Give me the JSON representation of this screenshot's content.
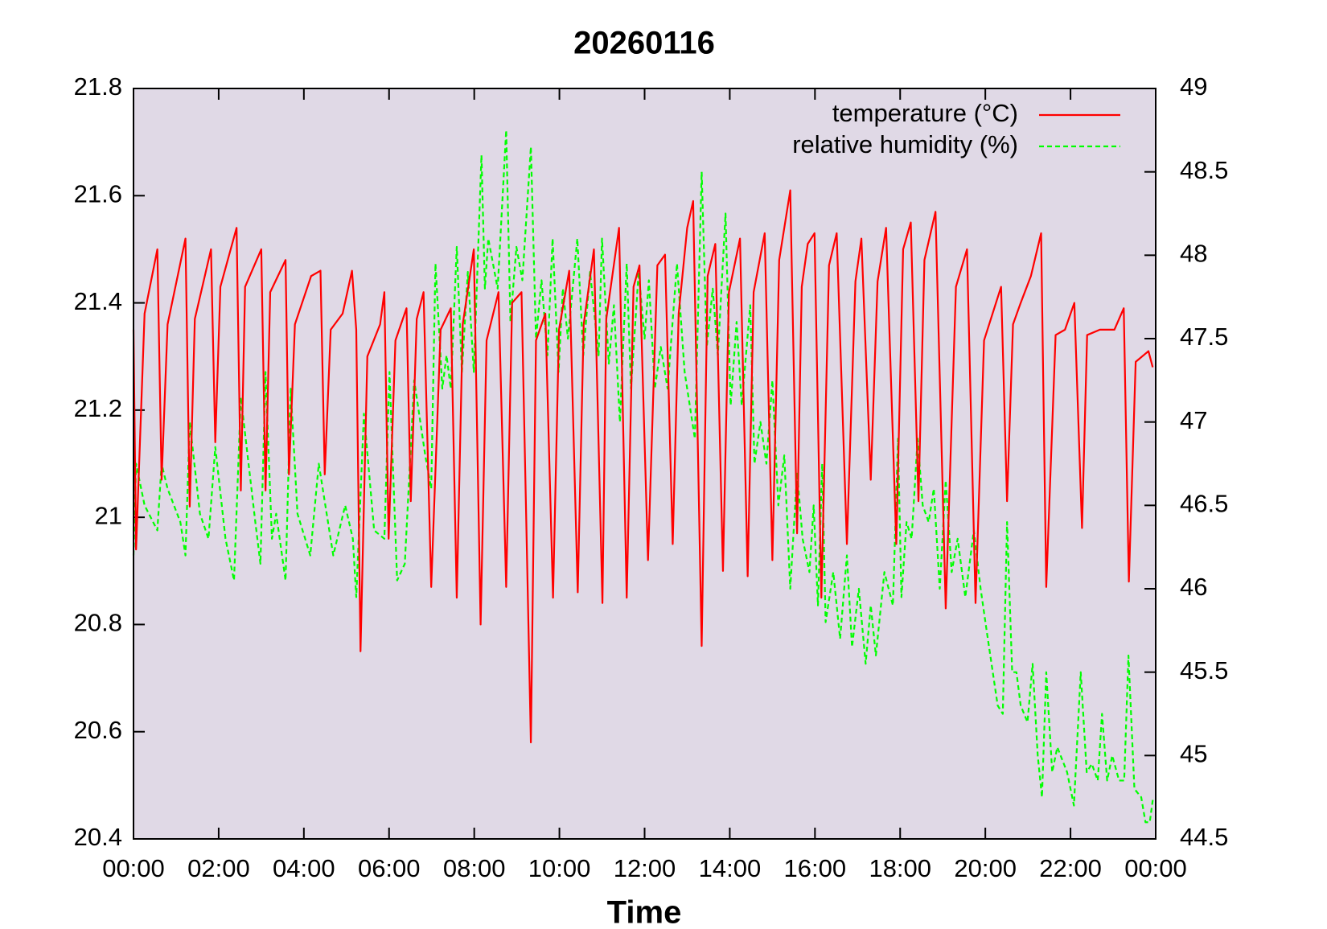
{
  "chart_data": {
    "type": "line",
    "title": "20260116",
    "x_label": "Time",
    "xlim": [
      0,
      24
    ],
    "xticks": [
      {
        "value": 0,
        "label": "00:00"
      },
      {
        "value": 2,
        "label": "02:00"
      },
      {
        "value": 4,
        "label": "04:00"
      },
      {
        "value": 6,
        "label": "06:00"
      },
      {
        "value": 8,
        "label": "08:00"
      },
      {
        "value": 10,
        "label": "10:00"
      },
      {
        "value": 12,
        "label": "12:00"
      },
      {
        "value": 14,
        "label": "14:00"
      },
      {
        "value": 16,
        "label": "16:00"
      },
      {
        "value": 18,
        "label": "18:00"
      },
      {
        "value": 20,
        "label": "20:00"
      },
      {
        "value": 22,
        "label": "22:00"
      },
      {
        "value": 24,
        "label": "00:00"
      }
    ],
    "ylim": [
      20.4,
      21.8
    ],
    "yticks": [
      20.4,
      20.6,
      20.8,
      21,
      21.2,
      21.4,
      21.6,
      21.8
    ],
    "y2lim": [
      44.5,
      49
    ],
    "y2ticks": [
      44.5,
      45,
      45.5,
      46,
      46.5,
      47,
      47.5,
      48,
      48.5,
      49
    ],
    "legend": "top-right",
    "background": "#e0d9e6",
    "series": [
      {
        "name": "temperature (°C)",
        "color": "#ff0000",
        "dashed": false,
        "axis": "y",
        "x": [
          0,
          0.06,
          0.26,
          0.56,
          0.66,
          0.8,
          1.22,
          1.32,
          1.44,
          1.82,
          1.92,
          2.04,
          2.42,
          2.52,
          2.62,
          3.0,
          3.1,
          3.21,
          3.57,
          3.65,
          3.79,
          4.17,
          4.39,
          4.49,
          4.63,
          4.91,
          5.13,
          5.23,
          5.33,
          5.49,
          5.79,
          5.89,
          5.99,
          6.15,
          6.41,
          6.51,
          6.65,
          6.81,
          6.99,
          7.21,
          7.45,
          7.59,
          7.73,
          7.99,
          8.15,
          8.29,
          8.57,
          8.75,
          8.89,
          9.11,
          9.33,
          9.45,
          9.67,
          9.85,
          9.99,
          10.23,
          10.43,
          10.57,
          10.81,
          11.01,
          11.1,
          11.4,
          11.58,
          11.74,
          11.88,
          12.08,
          12.3,
          12.48,
          12.66,
          12.8,
          13.0,
          13.14,
          13.34,
          13.48,
          13.66,
          13.84,
          13.98,
          14.24,
          14.42,
          14.56,
          14.82,
          15.0,
          15.16,
          15.42,
          15.58,
          15.69,
          15.83,
          15.99,
          16.15,
          16.33,
          16.51,
          16.75,
          16.95,
          17.09,
          17.31,
          17.47,
          17.67,
          17.91,
          18.07,
          18.25,
          18.43,
          18.57,
          18.83,
          19.07,
          19.31,
          19.57,
          19.77,
          19.97,
          20.37,
          20.51,
          20.65,
          20.83,
          21.07,
          21.31,
          21.43,
          21.65,
          21.87,
          22.09,
          22.27,
          22.39,
          22.69,
          23.03,
          23.25,
          23.37,
          23.53,
          23.83,
          23.93
        ],
        "values": [
          21.35,
          20.94,
          21.38,
          21.5,
          21.07,
          21.36,
          21.52,
          21.02,
          21.37,
          21.5,
          21.14,
          21.43,
          21.54,
          21.05,
          21.43,
          21.5,
          21.05,
          21.42,
          21.48,
          21.08,
          21.36,
          21.45,
          21.46,
          21.08,
          21.35,
          21.38,
          21.46,
          21.35,
          20.75,
          21.3,
          21.36,
          21.42,
          20.96,
          21.33,
          21.39,
          21.03,
          21.37,
          21.42,
          20.87,
          21.35,
          21.39,
          20.85,
          21.36,
          21.5,
          20.8,
          21.33,
          21.42,
          20.87,
          21.4,
          21.42,
          20.58,
          21.33,
          21.38,
          20.85,
          21.35,
          21.46,
          20.86,
          21.36,
          21.5,
          20.84,
          21.37,
          21.54,
          20.85,
          21.43,
          21.47,
          20.92,
          21.47,
          21.49,
          20.95,
          21.38,
          21.54,
          21.59,
          20.76,
          21.45,
          21.51,
          20.9,
          21.42,
          21.52,
          20.89,
          21.42,
          21.53,
          20.92,
          21.48,
          21.61,
          20.97,
          21.43,
          21.51,
          21.53,
          20.85,
          21.47,
          21.53,
          20.95,
          21.44,
          21.52,
          21.07,
          21.44,
          21.54,
          20.95,
          21.5,
          21.55,
          21.03,
          21.48,
          21.57,
          20.83,
          21.43,
          21.5,
          20.84,
          21.33,
          21.43,
          21.03,
          21.36,
          21.4,
          21.45,
          21.53,
          20.87,
          21.34,
          21.35,
          21.4,
          20.98,
          21.34,
          21.35,
          21.35,
          21.39,
          20.88,
          21.29,
          21.31,
          21.28
        ]
      },
      {
        "name": "relative humidity (%)",
        "color": "#00ff00",
        "dashed": true,
        "axis": "y2",
        "x": [
          0,
          0.06,
          0.26,
          0.56,
          0.66,
          0.8,
          1.1,
          1.22,
          1.32,
          1.56,
          1.76,
          1.92,
          2.16,
          2.36,
          2.52,
          2.86,
          2.98,
          3.1,
          3.25,
          3.35,
          3.57,
          3.69,
          3.85,
          4.15,
          4.35,
          4.69,
          4.97,
          5.15,
          5.23,
          5.41,
          5.65,
          5.89,
          6.01,
          6.19,
          6.37,
          6.59,
          6.85,
          6.99,
          7.09,
          7.25,
          7.35,
          7.45,
          7.59,
          7.71,
          7.85,
          7.99,
          8.17,
          8.25,
          8.33,
          8.55,
          8.75,
          8.85,
          8.99,
          9.13,
          9.33,
          9.45,
          9.58,
          9.72,
          9.84,
          9.98,
          10.08,
          10.2,
          10.42,
          10.56,
          10.72,
          10.92,
          11.0,
          11.16,
          11.28,
          11.42,
          11.58,
          11.68,
          11.86,
          12.0,
          12.1,
          12.24,
          12.38,
          12.54,
          12.76,
          12.94,
          13.18,
          13.34,
          13.46,
          13.6,
          13.72,
          13.9,
          14.02,
          14.16,
          14.28,
          14.48,
          14.58,
          14.72,
          14.86,
          15.0,
          15.14,
          15.28,
          15.42,
          15.58,
          15.71,
          15.87,
          15.97,
          16.07,
          16.17,
          16.25,
          16.43,
          16.59,
          16.75,
          16.87,
          17.03,
          17.19,
          17.31,
          17.43,
          17.63,
          17.83,
          17.95,
          18.03,
          18.15,
          18.27,
          18.41,
          18.53,
          18.67,
          18.79,
          18.93,
          19.07,
          19.21,
          19.35,
          19.53,
          19.73,
          19.89,
          20.03,
          20.29,
          20.41,
          20.51,
          20.63,
          20.73,
          20.83,
          20.99,
          21.11,
          21.23,
          21.33,
          21.43,
          21.57,
          21.69,
          21.92,
          22.08,
          22.24,
          22.38,
          22.5,
          22.64,
          22.74,
          22.86,
          22.98,
          23.14,
          23.26,
          23.36,
          23.5,
          23.66,
          23.76,
          23.86,
          23.94
        ],
        "values": [
          46.2,
          46.75,
          46.5,
          46.35,
          46.75,
          46.6,
          46.4,
          46.2,
          47.0,
          46.45,
          46.3,
          46.85,
          46.3,
          46.05,
          47.15,
          46.4,
          46.15,
          47.3,
          46.3,
          46.45,
          46.05,
          47.2,
          46.45,
          46.2,
          46.75,
          46.2,
          46.5,
          46.3,
          45.95,
          47.05,
          46.35,
          46.3,
          47.3,
          46.05,
          46.15,
          47.25,
          46.8,
          46.6,
          47.95,
          47.2,
          47.4,
          47.2,
          48.05,
          47.3,
          47.9,
          47.3,
          48.6,
          47.8,
          48.1,
          47.8,
          48.75,
          47.6,
          48.05,
          47.85,
          48.65,
          47.5,
          47.85,
          47.4,
          48.1,
          47.3,
          47.8,
          47.5,
          48.1,
          47.4,
          47.9,
          47.4,
          48.1,
          47.35,
          47.7,
          47.0,
          47.95,
          47.2,
          47.9,
          47.5,
          47.85,
          47.2,
          47.45,
          47.2,
          47.95,
          47.3,
          46.9,
          48.5,
          47.45,
          47.8,
          47.4,
          48.25,
          47.1,
          47.6,
          47.1,
          47.7,
          46.75,
          47.0,
          46.75,
          47.25,
          46.5,
          46.8,
          46.0,
          46.7,
          46.3,
          46.1,
          46.5,
          45.9,
          46.75,
          45.8,
          46.1,
          45.7,
          46.2,
          45.65,
          46.0,
          45.55,
          45.9,
          45.6,
          46.1,
          45.9,
          46.9,
          45.95,
          46.4,
          46.3,
          46.9,
          46.5,
          46.4,
          46.6,
          46.0,
          46.65,
          46.1,
          46.3,
          45.95,
          46.35,
          46.0,
          45.75,
          45.3,
          45.25,
          46.4,
          45.5,
          45.5,
          45.3,
          45.2,
          45.55,
          45.0,
          44.75,
          45.5,
          44.9,
          45.05,
          44.9,
          44.7,
          45.5,
          44.9,
          44.95,
          44.85,
          45.25,
          44.85,
          45.0,
          44.85,
          44.85,
          45.6,
          44.8,
          44.75,
          44.6,
          44.6,
          44.75
        ]
      }
    ]
  }
}
